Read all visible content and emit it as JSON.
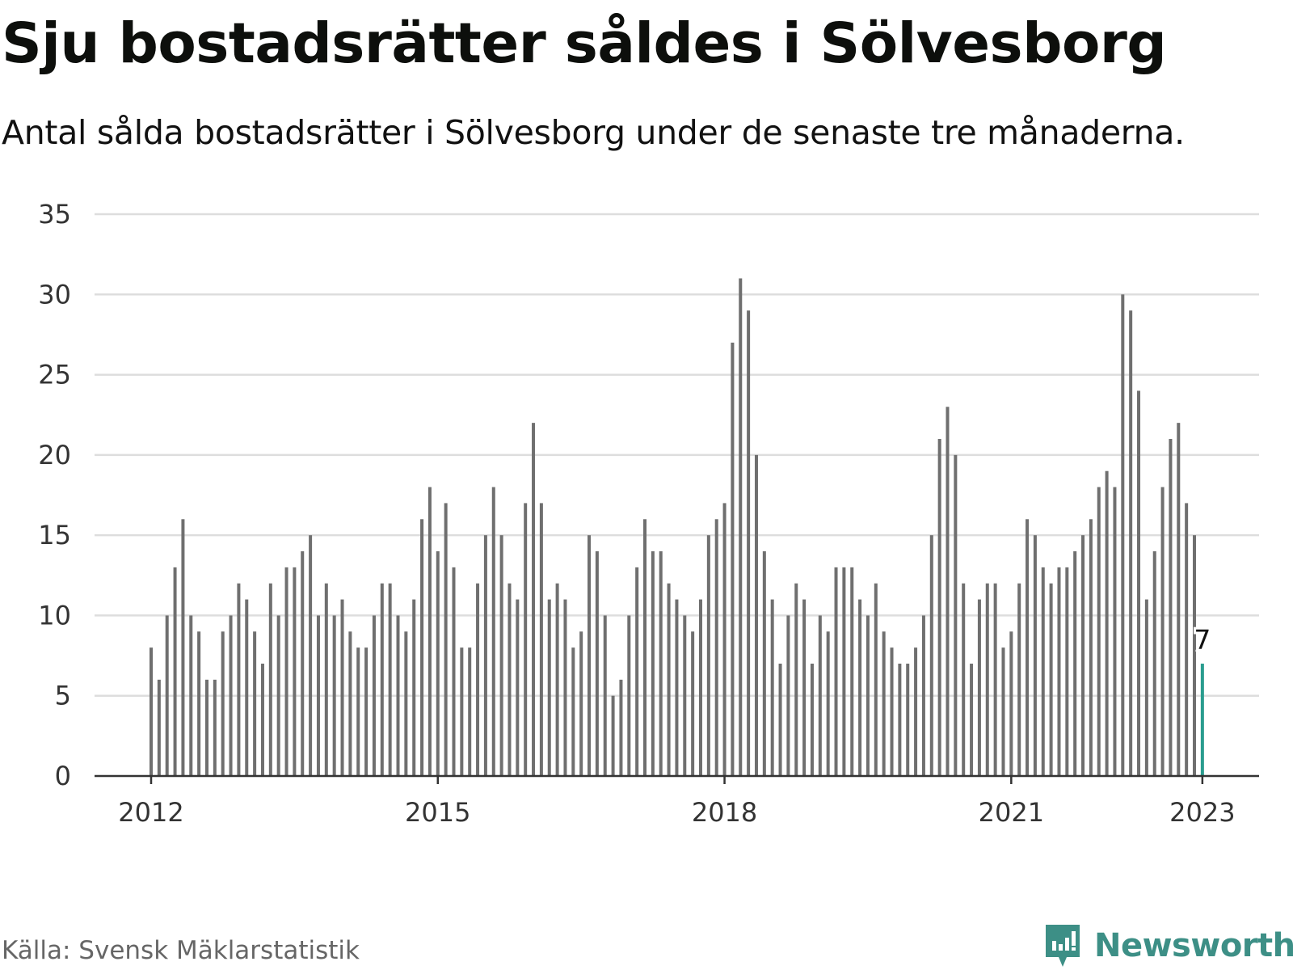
{
  "header": {
    "title": "Sju bostadsrätter såldes i Sölvesborg",
    "subtitle": "Antal sålda bostadsrätter i Sölvesborg under de senaste tre månaderna."
  },
  "footer": {
    "source": "Källa: Svensk Mäklarstatistik",
    "brand": "Newsworthy",
    "brand_icon": "newsworthy-logo-icon"
  },
  "colors": {
    "bar": "#6f6f6f",
    "highlight": "#2a9d8f",
    "grid": "#dddddd",
    "axis": "#333333",
    "brand": "#3d8f86"
  },
  "chart_data": {
    "type": "bar",
    "title": "Sju bostadsrätter såldes i Sölvesborg",
    "subtitle": "Antal sålda bostadsrätter i Sölvesborg under de senaste tre månaderna.",
    "xlabel": "",
    "ylabel": "",
    "x_start": "2012-01",
    "x_end": "2023-01",
    "x_ticks": [
      "2012",
      "2015",
      "2018",
      "2021",
      "2023"
    ],
    "y_ticks": [
      0,
      5,
      10,
      15,
      20,
      25,
      30,
      35
    ],
    "ylim": [
      0,
      35
    ],
    "grid": true,
    "values": [
      8,
      6,
      10,
      13,
      16,
      10,
      9,
      6,
      6,
      9,
      10,
      12,
      11,
      9,
      7,
      12,
      10,
      13,
      13,
      14,
      15,
      10,
      12,
      10,
      11,
      9,
      8,
      8,
      10,
      12,
      12,
      10,
      9,
      11,
      16,
      18,
      14,
      17,
      13,
      8,
      8,
      12,
      15,
      18,
      15,
      12,
      11,
      17,
      22,
      17,
      11,
      12,
      11,
      8,
      9,
      15,
      14,
      10,
      5,
      6,
      10,
      13,
      16,
      14,
      14,
      12,
      11,
      10,
      9,
      11,
      15,
      16,
      17,
      27,
      31,
      29,
      20,
      14,
      11,
      7,
      10,
      12,
      11,
      7,
      10,
      9,
      13,
      13,
      13,
      11,
      10,
      12,
      9,
      8,
      7,
      7,
      8,
      10,
      15,
      21,
      23,
      20,
      12,
      7,
      11,
      12,
      12,
      8,
      9,
      12,
      16,
      15,
      13,
      12,
      13,
      13,
      14,
      15,
      16,
      18,
      19,
      18,
      30,
      29,
      24,
      11,
      14,
      18,
      21,
      22,
      17,
      15,
      7
    ],
    "highlight": {
      "label": "7",
      "value": 7
    }
  }
}
